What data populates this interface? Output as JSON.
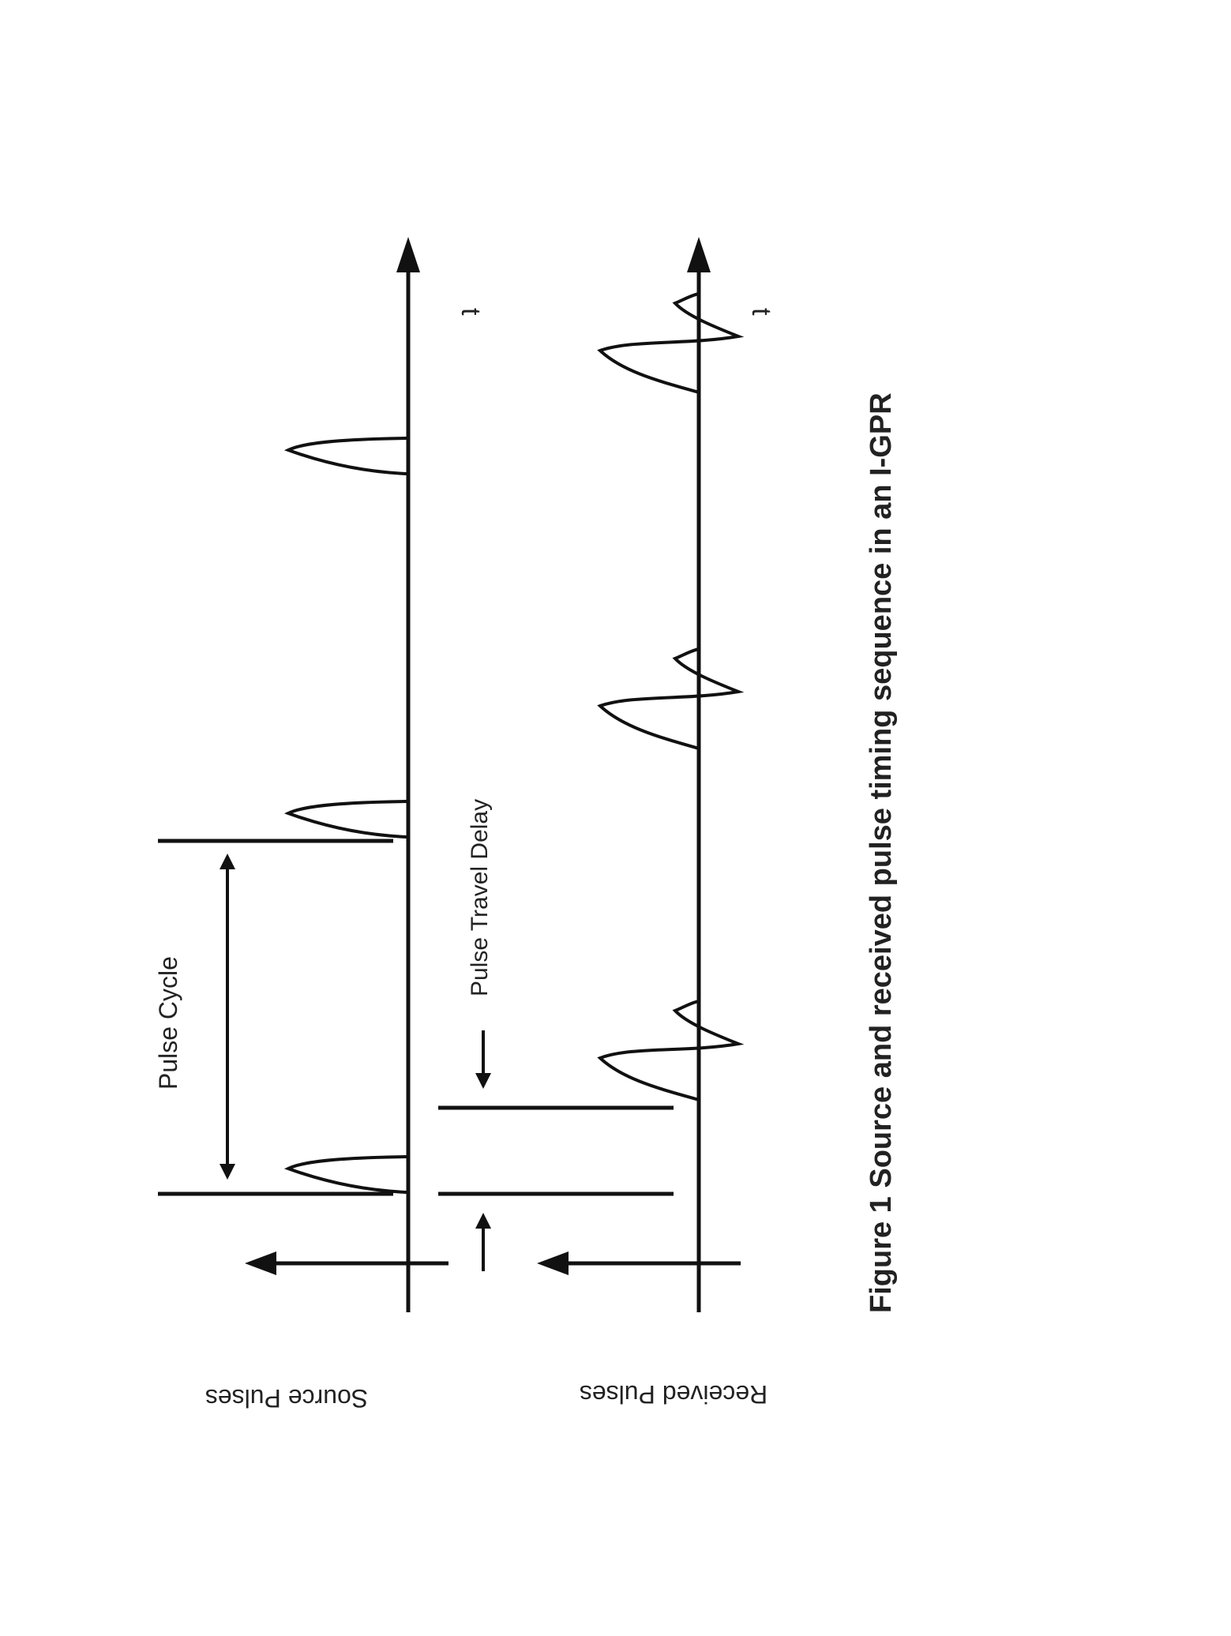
{
  "caption": "Figure 1 Source and received pulse timing sequence in an I-GPR",
  "labels": {
    "source_pulses": "Source Pulses",
    "received_pulses": "Received Pulses",
    "pulse_cycle": "Pulse Cycle",
    "pulse_travel_delay": "Pulse Travel Delay",
    "time_axis_source": "t",
    "time_axis_received": "t"
  },
  "traces": {
    "source": {
      "pulse_count": 3,
      "pulse_shape": "unipolar"
    },
    "received": {
      "pulse_count": 3,
      "pulse_shape": "bipolar"
    }
  },
  "colors": {
    "ink": "#111111",
    "background": "#ffffff"
  }
}
